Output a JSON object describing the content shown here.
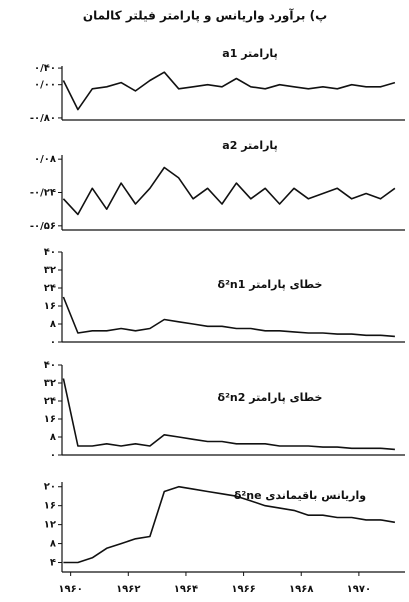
{
  "title": "پ) برآورد واریانس و پارامتر فیلتر کالمان",
  "chart_data": [
    {
      "type": "line",
      "label": "پارامتر a1",
      "color": "#111111",
      "x": [
        1959.75,
        1960.25,
        1960.75,
        1961.25,
        1961.75,
        1962.25,
        1962.75,
        1963.25,
        1963.75,
        1964.25,
        1964.75,
        1965.25,
        1965.75,
        1966.25,
        1966.75,
        1967.25,
        1967.75,
        1968.25,
        1968.75,
        1969.25,
        1969.75,
        1970.25,
        1970.75,
        1971.25
      ],
      "values": [
        0.1,
        -0.6,
        -0.1,
        -0.05,
        0.05,
        -0.15,
        0.1,
        0.3,
        -0.1,
        -0.05,
        0.0,
        -0.05,
        0.15,
        -0.05,
        -0.1,
        0.0,
        -0.05,
        -0.1,
        -0.05,
        -0.1,
        0.0,
        -0.05,
        -0.05,
        0.05
      ],
      "xlim": [
        1959.7,
        1971.6
      ],
      "ylim": [
        -0.85,
        0.45
      ],
      "yticks": [
        {
          "value": 0.4,
          "label": "۰/۴۰"
        },
        {
          "value": 0,
          "label": "۰/۰۰"
        },
        {
          "value": -0.8,
          "label": "-۰/۸۰"
        }
      ]
    },
    {
      "type": "line",
      "label": "پارامتر a2",
      "color": "#111111",
      "x": [
        1959.75,
        1960.25,
        1960.75,
        1961.25,
        1961.75,
        1962.25,
        1962.75,
        1963.25,
        1963.75,
        1964.25,
        1964.75,
        1965.25,
        1965.75,
        1966.25,
        1966.75,
        1967.25,
        1967.75,
        1968.25,
        1968.75,
        1969.25,
        1969.75,
        1970.25,
        1970.75,
        1971.25
      ],
      "values": [
        -0.3,
        -0.45,
        -0.2,
        -0.4,
        -0.15,
        -0.35,
        -0.2,
        0.0,
        -0.1,
        -0.3,
        -0.2,
        -0.35,
        -0.15,
        -0.3,
        -0.2,
        -0.35,
        -0.2,
        -0.3,
        -0.25,
        -0.2,
        -0.3,
        -0.25,
        -0.3,
        -0.2
      ],
      "xlim": [
        1959.7,
        1971.6
      ],
      "ylim": [
        -0.6,
        0.12
      ],
      "yticks": [
        {
          "value": 0.08,
          "label": "۰/۰۸"
        },
        {
          "value": -0.24,
          "label": "-۰/۲۴"
        },
        {
          "value": -0.56,
          "label": "-۰/۵۶"
        }
      ]
    },
    {
      "type": "line",
      "label": "خطای پارامتر δ²n1",
      "color": "#111111",
      "x": [
        1959.75,
        1960.25,
        1960.75,
        1961.25,
        1961.75,
        1962.25,
        1962.75,
        1963.25,
        1963.75,
        1964.25,
        1964.75,
        1965.25,
        1965.75,
        1966.25,
        1966.75,
        1967.25,
        1967.75,
        1968.25,
        1968.75,
        1969.25,
        1969.75,
        1970.25,
        1970.75,
        1971.25
      ],
      "values": [
        20,
        4,
        5,
        5,
        6,
        5,
        6,
        10,
        9,
        8,
        7,
        7,
        6,
        6,
        5,
        5,
        4.5,
        4,
        4,
        3.5,
        3.5,
        3,
        3,
        2.5
      ],
      "xlim": [
        1959.7,
        1971.6
      ],
      "ylim": [
        0,
        40
      ],
      "yticks": [
        {
          "value": 40,
          "label": "۴۰"
        },
        {
          "value": 32,
          "label": "۳۲"
        },
        {
          "value": 24,
          "label": "۲۴"
        },
        {
          "value": 16,
          "label": "۱۶"
        },
        {
          "value": 8,
          "label": "۸"
        },
        {
          "value": 0,
          "label": "۰"
        }
      ]
    },
    {
      "type": "line",
      "label": "خطای پارامتر δ²n2",
      "color": "#111111",
      "x": [
        1959.75,
        1960.25,
        1960.75,
        1961.25,
        1961.75,
        1962.25,
        1962.75,
        1963.25,
        1963.75,
        1964.25,
        1964.75,
        1965.25,
        1965.75,
        1966.25,
        1966.75,
        1967.25,
        1967.75,
        1968.25,
        1968.75,
        1969.25,
        1969.75,
        1970.25,
        1970.75,
        1971.25
      ],
      "values": [
        34,
        4,
        4,
        5,
        4,
        5,
        4,
        9,
        8,
        7,
        6,
        6,
        5,
        5,
        5,
        4,
        4,
        4,
        3.5,
        3.5,
        3,
        3,
        3,
        2.5
      ],
      "xlim": [
        1959.7,
        1971.6
      ],
      "ylim": [
        0,
        40
      ],
      "yticks": [
        {
          "value": 40,
          "label": "۴۰"
        },
        {
          "value": 32,
          "label": "۳۲"
        },
        {
          "value": 24,
          "label": "۲۴"
        },
        {
          "value": 16,
          "label": "۱۶"
        },
        {
          "value": 8,
          "label": "۸"
        },
        {
          "value": 0,
          "label": "۰"
        }
      ]
    },
    {
      "type": "line",
      "label": "واریانس باقیماندی δ²ne",
      "color": "#111111",
      "x": [
        1959.75,
        1960.25,
        1960.75,
        1961.25,
        1961.75,
        1962.25,
        1962.75,
        1963.25,
        1963.75,
        1964.25,
        1964.75,
        1965.25,
        1965.75,
        1966.25,
        1966.75,
        1967.25,
        1967.75,
        1968.25,
        1968.75,
        1969.25,
        1969.75,
        1970.25,
        1970.75,
        1971.25
      ],
      "values": [
        4,
        4,
        5,
        7,
        8,
        9,
        9.5,
        19,
        20,
        19.5,
        19,
        18.5,
        18,
        17,
        16,
        15.5,
        15,
        14,
        14,
        13.5,
        13.5,
        13,
        13,
        12.5
      ],
      "xlim": [
        1959.7,
        1971.6
      ],
      "ylim": [
        2,
        21
      ],
      "yticks": [
        {
          "value": 20,
          "label": "۲۰"
        },
        {
          "value": 16,
          "label": "۱۶"
        },
        {
          "value": 12,
          "label": "۱۲"
        },
        {
          "value": 8,
          "label": "۸"
        },
        {
          "value": 4,
          "label": "۴"
        }
      ],
      "xticks": [
        {
          "value": 1960,
          "label": "۱۹۶۰"
        },
        {
          "value": 1962,
          "label": "۱۹۶۲"
        },
        {
          "value": 1964,
          "label": "۱۹۶۴"
        },
        {
          "value": 1966,
          "label": "۱۹۶۶"
        },
        {
          "value": 1968,
          "label": "۱۹۶۸"
        },
        {
          "value": 1970,
          "label": "۱۹۷۰"
        }
      ]
    }
  ]
}
